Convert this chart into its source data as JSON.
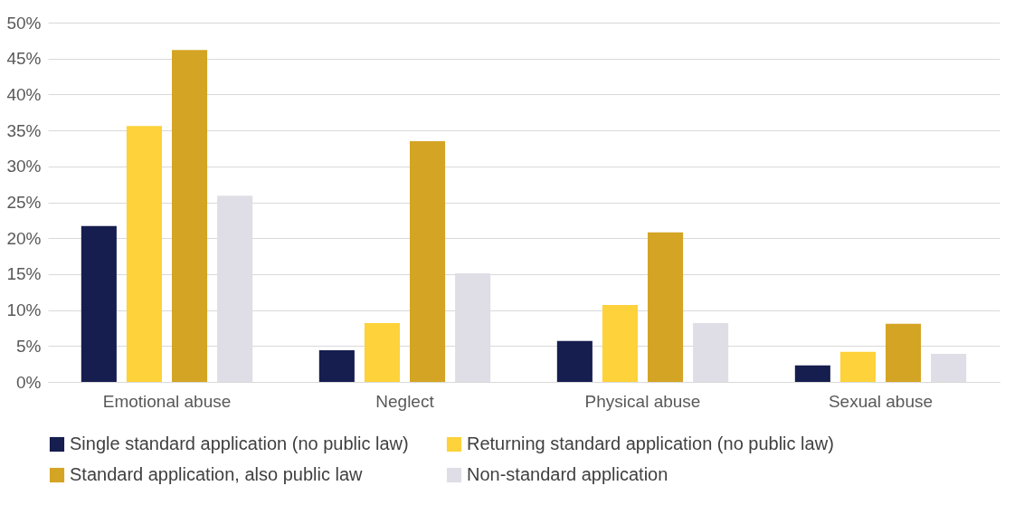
{
  "chart_data": {
    "type": "bar",
    "categories": [
      "Emotional abuse",
      "Neglect",
      "Physical abuse",
      "Sexual abuse"
    ],
    "series": [
      {
        "name": "Single standard application (no public law)",
        "color": "#161d4f",
        "values": [
          21.7,
          4.4,
          5.7,
          2.3
        ]
      },
      {
        "name": "Returning standard application (no public law)",
        "color": "#fdd23a",
        "values": [
          35.6,
          8.2,
          10.7,
          4.2
        ]
      },
      {
        "name": "Standard application, also public law",
        "color": "#d4a424",
        "values": [
          46.2,
          33.5,
          20.8,
          8.1
        ]
      },
      {
        "name": "Non-standard application",
        "color": "#dfdee6",
        "values": [
          25.9,
          15.1,
          8.2,
          3.9
        ]
      }
    ],
    "ylim": [
      0,
      50
    ],
    "yticks": [
      {
        "value": 0,
        "label": "0%"
      },
      {
        "value": 5,
        "label": "5%"
      },
      {
        "value": 10,
        "label": "10%"
      },
      {
        "value": 15,
        "label": "15%"
      },
      {
        "value": 20,
        "label": "20%"
      },
      {
        "value": 25,
        "label": "25%"
      },
      {
        "value": 30,
        "label": "30%"
      },
      {
        "value": 35,
        "label": "35%"
      },
      {
        "value": 40,
        "label": "40%"
      },
      {
        "value": 45,
        "label": "45%"
      },
      {
        "value": 50,
        "label": "50%"
      }
    ],
    "grid": "y",
    "legend": "bottom"
  }
}
